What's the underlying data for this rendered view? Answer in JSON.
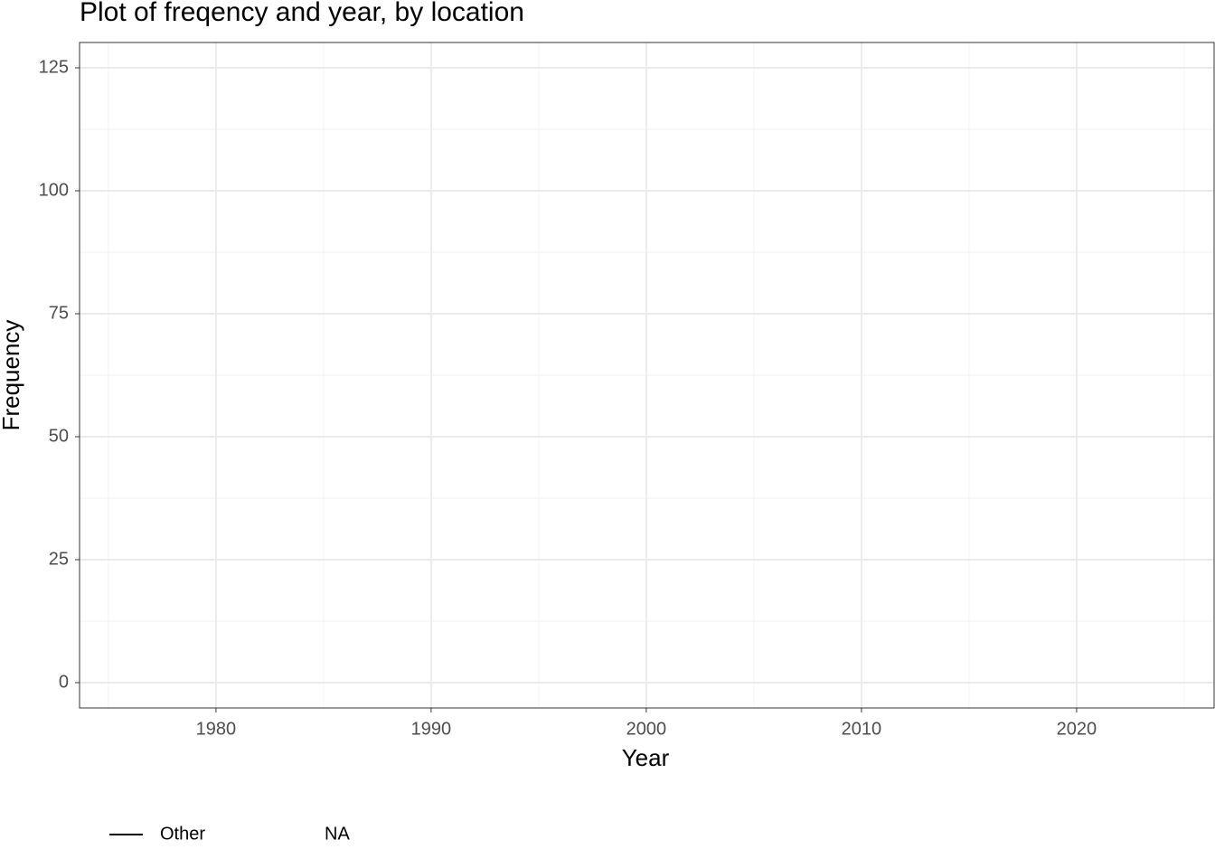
{
  "chart_data": {
    "type": "line",
    "title": "Plot of freqency and year, by location",
    "x_label": "Year",
    "y_label": "Frequency",
    "x": [],
    "series": [
      {
        "name": "Other",
        "color": "#000000",
        "values": []
      },
      {
        "name": "NA",
        "values": []
      }
    ],
    "xlim": [
      1973.66,
      2026.39
    ],
    "xticks": [
      1980,
      1990,
      2000,
      2010,
      2020
    ],
    "ylim": [
      -5.15,
      130.15
    ],
    "yticks": [
      0,
      25,
      50,
      75,
      100,
      125
    ],
    "grid": true,
    "legend": "bottom"
  }
}
